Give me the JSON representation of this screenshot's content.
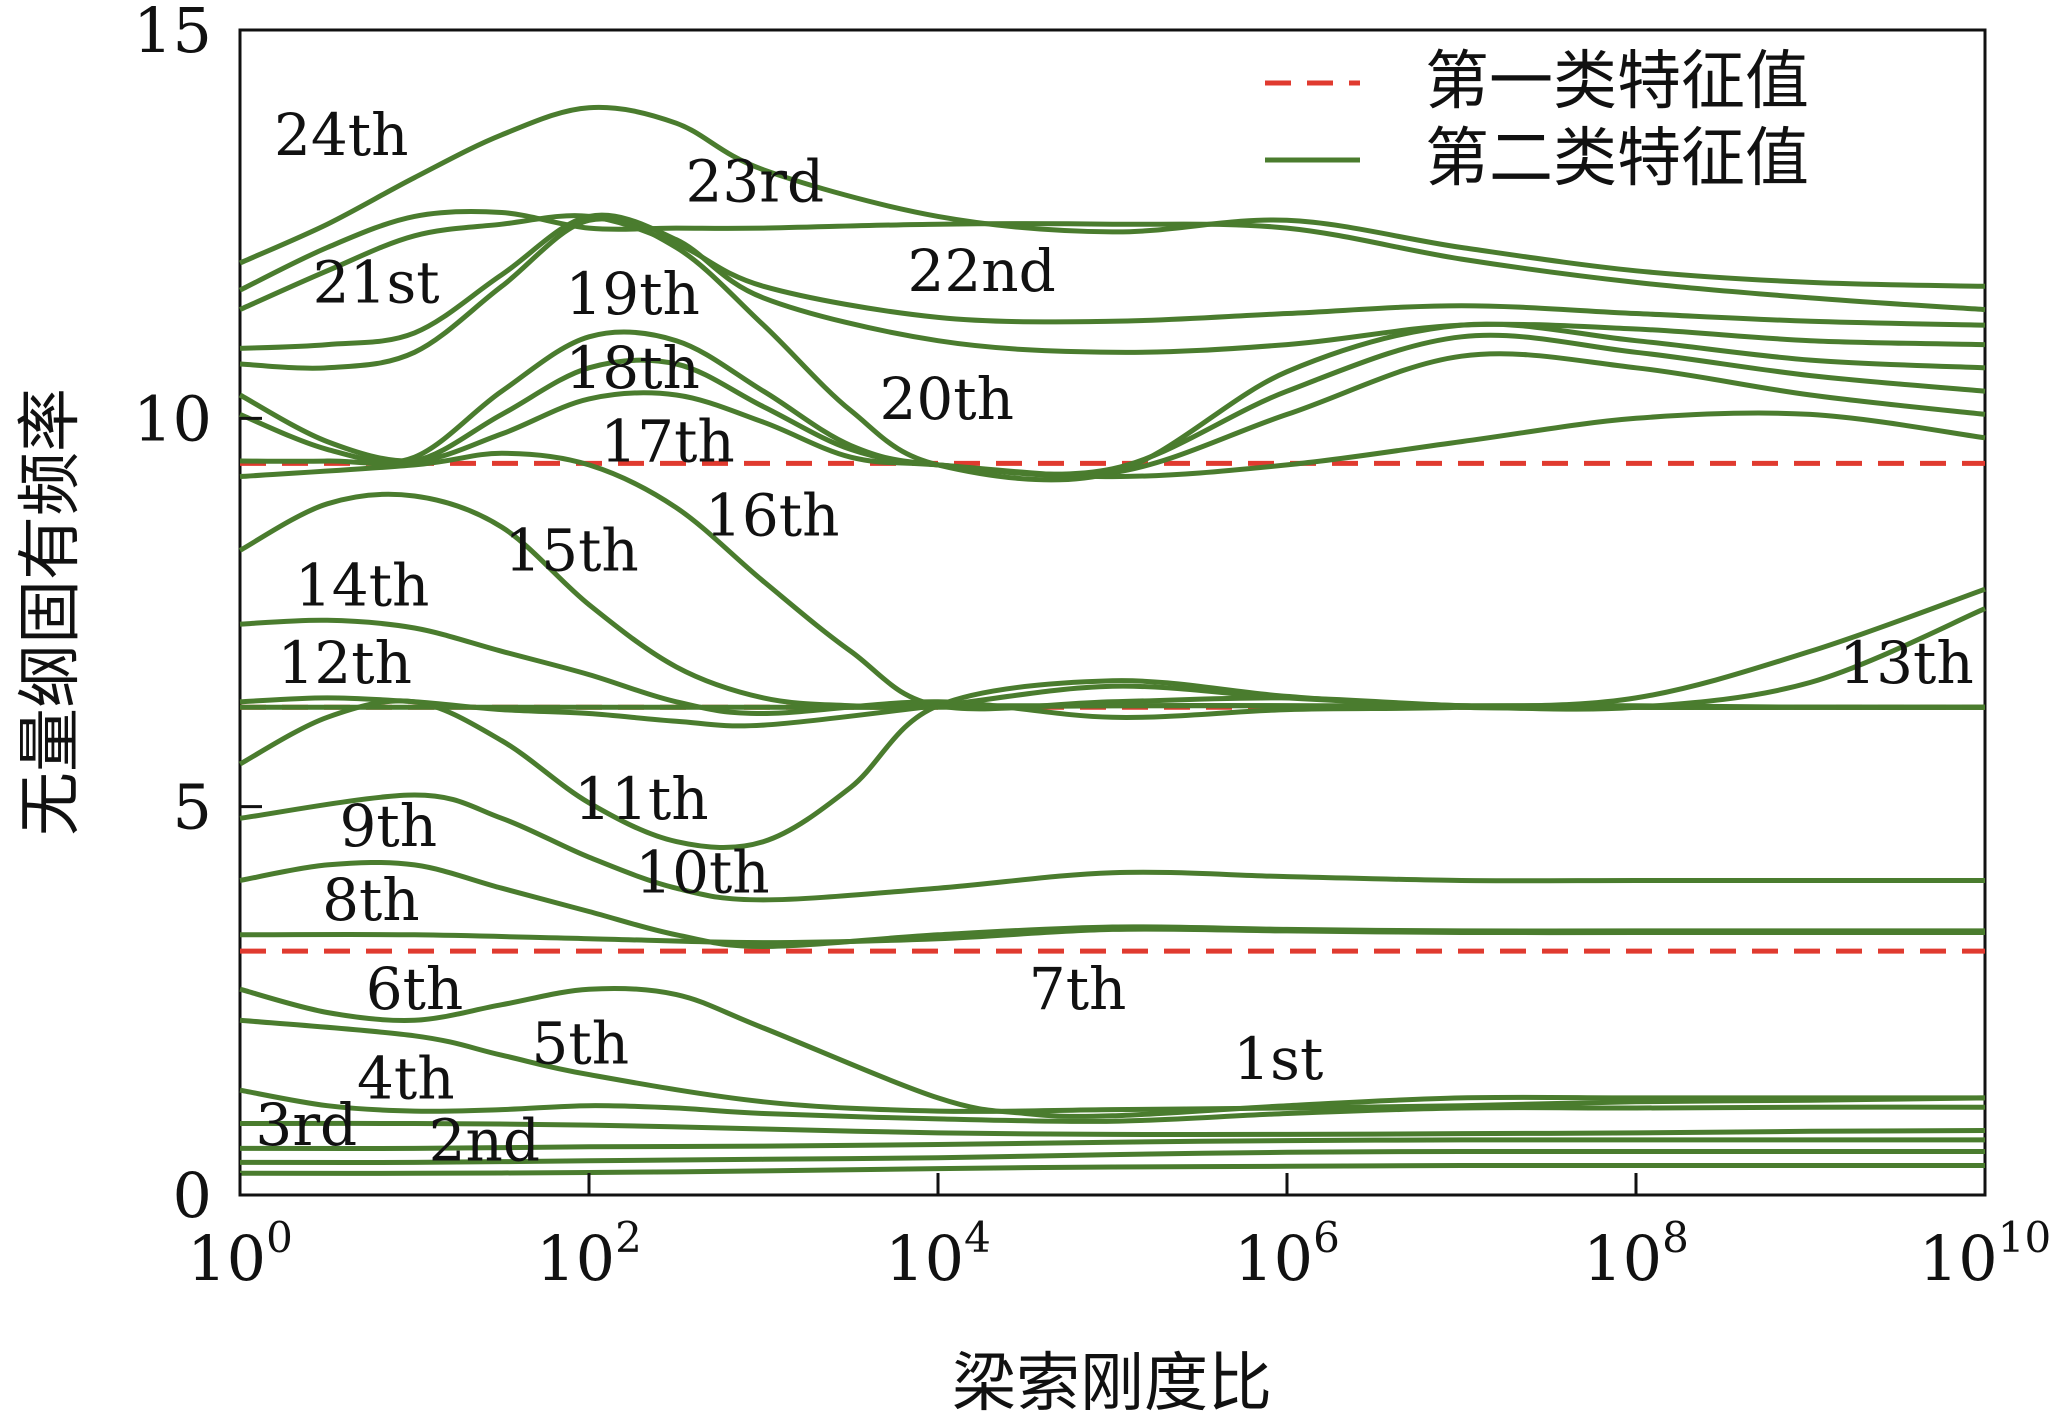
{
  "chart_data": {
    "type": "line",
    "title": "",
    "xlabel": "梁索刚度比",
    "ylabel": "无量纲固有频率",
    "xscale": "log",
    "xlim": [
      1,
      10000000000
    ],
    "ylim": [
      0,
      15
    ],
    "grid": false,
    "legend": {
      "placement": "top-right",
      "entries": [
        {
          "label": "第一类特征值",
          "style": "dashed",
          "color": "#e03a2f"
        },
        {
          "label": "第二类特征值",
          "style": "solid",
          "color": "#4a7c2e"
        }
      ]
    },
    "x_ticks": [
      {
        "value": 1,
        "base": "10",
        "exp": "0"
      },
      {
        "value": 100,
        "base": "10",
        "exp": "2"
      },
      {
        "value": 10000,
        "base": "10",
        "exp": "4"
      },
      {
        "value": 1000000,
        "base": "10",
        "exp": "6"
      },
      {
        "value": 100000000,
        "base": "10",
        "exp": "8"
      },
      {
        "value": 10000000000,
        "base": "10",
        "exp": "10"
      }
    ],
    "y_ticks": [
      {
        "value": 0,
        "label": "0"
      },
      {
        "value": 5,
        "label": "5"
      },
      {
        "value": 10,
        "label": "10"
      },
      {
        "value": 15,
        "label": "15"
      }
    ],
    "first_kind_eigenvalues": [
      3.14,
      6.28,
      9.42
    ],
    "second_kind_eigenvalues": [
      {
        "log10x": [
          0,
          1,
          2,
          3,
          4,
          5,
          6,
          7,
          8,
          9,
          10
        ],
        "y": [
          0.28,
          0.28,
          0.29,
          0.31,
          0.34,
          0.36,
          0.37,
          0.38,
          0.38,
          0.38,
          0.38
        ]
      },
      {
        "log10x": [
          0,
          1,
          2,
          3,
          4,
          5,
          6,
          7,
          8,
          9,
          10
        ],
        "y": [
          0.42,
          0.42,
          0.44,
          0.46,
          0.48,
          0.52,
          0.55,
          0.56,
          0.56,
          0.56,
          0.56
        ]
      },
      {
        "log10x": [
          0,
          1,
          2,
          3,
          4,
          5,
          6,
          7,
          8,
          9,
          10
        ],
        "y": [
          0.6,
          0.6,
          0.62,
          0.63,
          0.65,
          0.68,
          0.7,
          0.71,
          0.71,
          0.71,
          0.71
        ]
      },
      {
        "log10x": [
          0,
          1,
          2,
          3,
          4,
          5,
          6,
          7,
          8,
          9,
          10
        ],
        "y": [
          0.92,
          0.92,
          0.9,
          0.85,
          0.8,
          0.78,
          0.78,
          0.79,
          0.8,
          0.82,
          0.83
        ]
      },
      {
        "log10x": [
          0,
          0.5,
          1,
          1.5,
          2,
          2.5,
          3,
          4,
          5,
          6,
          7,
          8,
          9,
          10
        ],
        "y": [
          1.35,
          1.15,
          1.08,
          1.1,
          1.15,
          1.12,
          1.05,
          0.98,
          0.95,
          1.05,
          1.12,
          1.12,
          1.13,
          1.13
        ]
      },
      {
        "log10x": [
          0,
          1,
          1.5,
          2,
          3,
          4,
          5,
          6,
          7,
          8,
          9,
          10
        ],
        "y": [
          2.25,
          2.05,
          1.8,
          1.55,
          1.2,
          1.08,
          1.1,
          1.12,
          1.15,
          1.2,
          1.22,
          1.25
        ]
      },
      {
        "log10x": [
          0,
          0.5,
          1,
          1.5,
          2,
          2.5,
          3,
          4,
          4.5,
          5,
          6,
          7,
          8,
          9,
          10
        ],
        "y": [
          2.65,
          2.35,
          2.25,
          2.45,
          2.65,
          2.58,
          2.15,
          1.25,
          1.05,
          1.02,
          1.15,
          1.25,
          1.25,
          1.25,
          1.25
        ]
      },
      {
        "log10x": [
          0,
          1,
          2,
          3,
          4,
          5,
          6,
          7,
          8,
          9,
          10
        ],
        "y": [
          3.35,
          3.35,
          3.3,
          3.25,
          3.3,
          3.42,
          3.4,
          3.38,
          3.38,
          3.38,
          3.38
        ]
      },
      {
        "log10x": [
          0,
          0.5,
          1,
          1.5,
          2,
          2.5,
          3,
          4,
          5,
          6,
          7,
          8,
          9,
          10
        ],
        "y": [
          4.05,
          4.25,
          4.25,
          3.95,
          3.65,
          3.35,
          3.2,
          3.35,
          3.45,
          3.42,
          3.4,
          3.4,
          3.4,
          3.4
        ]
      },
      {
        "log10x": [
          0,
          1,
          1.5,
          2,
          2.5,
          3,
          4,
          5,
          6,
          7,
          8,
          9,
          10
        ],
        "y": [
          4.85,
          5.15,
          4.85,
          4.35,
          3.95,
          3.8,
          3.95,
          4.15,
          4.1,
          4.05,
          4.05,
          4.05,
          4.05
        ]
      },
      {
        "log10x": [
          0,
          0.5,
          1,
          1.5,
          2,
          2.5,
          3,
          3.5,
          4,
          5,
          6,
          7,
          8,
          9,
          10
        ],
        "y": [
          5.55,
          6.15,
          6.35,
          5.85,
          5.05,
          4.55,
          4.55,
          5.25,
          6.3,
          6.62,
          6.42,
          6.28,
          6.28,
          6.28,
          6.28
        ]
      },
      {
        "log10x": [
          0,
          0.5,
          1,
          1.5,
          2,
          2.5,
          3,
          4,
          5,
          6,
          7,
          8,
          9,
          10
        ],
        "y": [
          6.35,
          6.4,
          6.35,
          6.25,
          6.2,
          6.1,
          6.05,
          6.3,
          6.55,
          6.4,
          6.3,
          6.28,
          6.28,
          6.28
        ]
      },
      {
        "log10x": [
          0,
          1,
          2,
          3,
          4,
          5,
          6,
          7,
          8,
          9,
          10
        ],
        "y": [
          6.28,
          6.28,
          6.28,
          6.28,
          6.28,
          6.3,
          6.3,
          6.28,
          6.28,
          6.6,
          7.55
        ]
      },
      {
        "log10x": [
          0,
          0.5,
          1,
          1.5,
          2,
          2.5,
          3,
          4,
          5,
          6,
          7,
          8,
          9,
          10
        ],
        "y": [
          7.35,
          7.4,
          7.3,
          7.0,
          6.7,
          6.35,
          6.2,
          6.35,
          6.15,
          6.25,
          6.28,
          6.4,
          7.0,
          7.8
        ]
      },
      {
        "log10x": [
          0,
          0.5,
          1,
          1.5,
          2,
          2.5,
          3,
          3.5,
          4,
          5,
          6,
          7,
          8,
          9,
          10
        ],
        "y": [
          8.3,
          8.9,
          9.0,
          8.6,
          7.6,
          6.8,
          6.4,
          6.3,
          6.3,
          6.3,
          6.3,
          6.3,
          6.3,
          6.28,
          6.28
        ]
      },
      {
        "log10x": [
          0,
          1,
          1.5,
          2,
          2.5,
          3,
          3.5,
          4,
          5,
          6,
          7,
          8,
          9,
          10
        ],
        "y": [
          9.25,
          9.4,
          9.55,
          9.4,
          8.85,
          7.9,
          7.0,
          6.3,
          6.35,
          6.4,
          6.3,
          6.28,
          6.28,
          6.28
        ]
      },
      {
        "log10x": [
          0,
          0.5,
          1,
          1.5,
          2,
          2.5,
          3,
          3.5,
          4,
          5,
          6,
          7,
          8,
          9,
          10
        ],
        "y": [
          10.3,
          9.7,
          9.45,
          9.8,
          10.25,
          10.3,
          9.95,
          9.5,
          9.4,
          9.25,
          9.4,
          9.7,
          10.0,
          10.05,
          9.75
        ]
      },
      {
        "log10x": [
          0,
          0.5,
          1,
          1.5,
          2,
          2.5,
          3,
          3.5,
          4,
          5,
          6,
          7,
          8,
          9,
          10
        ],
        "y": [
          10.05,
          9.6,
          9.45,
          10.05,
          10.65,
          10.7,
          10.15,
          9.6,
          9.4,
          9.3,
          10.05,
          10.8,
          10.65,
          10.3,
          10.05
        ]
      },
      {
        "log10x": [
          0,
          0.5,
          1,
          1.5,
          2,
          2.5,
          3,
          3.5,
          4,
          5,
          6,
          7,
          8,
          9,
          10
        ],
        "y": [
          9.45,
          9.45,
          9.5,
          10.35,
          11.05,
          11.0,
          10.35,
          9.65,
          9.4,
          9.35,
          10.35,
          11.05,
          10.85,
          10.55,
          10.35
        ]
      },
      {
        "log10x": [
          0,
          0.5,
          1,
          1.5,
          2,
          2.5,
          3,
          3.5,
          4,
          5,
          6,
          7,
          8,
          9,
          10
        ],
        "y": [
          10.7,
          10.65,
          10.85,
          11.7,
          12.55,
          12.2,
          11.2,
          10.1,
          9.4,
          9.3,
          10.6,
          11.2,
          11.0,
          10.75,
          10.65
        ]
      },
      {
        "log10x": [
          0,
          0.5,
          1,
          1.5,
          2,
          2.5,
          3,
          4,
          5,
          6,
          7,
          8,
          9,
          10
        ],
        "y": [
          10.9,
          10.95,
          11.1,
          11.85,
          12.6,
          12.3,
          11.55,
          11.0,
          10.85,
          10.95,
          11.2,
          11.15,
          11.0,
          10.95
        ]
      },
      {
        "log10x": [
          0,
          0.5,
          1,
          1.5,
          2,
          2.5,
          3,
          4,
          5,
          6,
          7,
          8,
          9,
          10
        ],
        "y": [
          11.4,
          11.9,
          12.35,
          12.5,
          12.6,
          12.25,
          11.7,
          11.3,
          11.25,
          11.35,
          11.45,
          11.35,
          11.25,
          11.2
        ]
      },
      {
        "log10x": [
          0,
          0.5,
          1,
          1.5,
          2,
          2.5,
          3,
          4,
          5,
          6,
          7,
          8,
          9,
          10
        ],
        "y": [
          11.65,
          12.2,
          12.6,
          12.65,
          12.45,
          12.45,
          12.45,
          12.5,
          12.5,
          12.45,
          12.05,
          11.75,
          11.55,
          11.4
        ]
      },
      {
        "log10x": [
          0,
          0.5,
          1,
          1.5,
          2,
          2.5,
          3,
          4,
          5,
          6,
          7,
          8,
          9,
          10
        ],
        "y": [
          12.0,
          12.5,
          13.1,
          13.65,
          14.0,
          13.8,
          13.2,
          12.6,
          12.4,
          12.55,
          12.2,
          11.9,
          11.75,
          11.7
        ]
      }
    ],
    "annotations": [
      {
        "text": "1st",
        "log10x": 5.95,
        "y": 1.75
      },
      {
        "text": "2nd",
        "log10x": 1.4,
        "y": 0.7
      },
      {
        "text": "3rd",
        "log10x": 0.38,
        "y": 0.9
      },
      {
        "text": "4th",
        "log10x": 0.95,
        "y": 1.5
      },
      {
        "text": "5th",
        "log10x": 1.95,
        "y": 1.95
      },
      {
        "text": "6th",
        "log10x": 1.0,
        "y": 2.65
      },
      {
        "text": "7th",
        "log10x": 4.8,
        "y": 2.65
      },
      {
        "text": "8th",
        "log10x": 0.75,
        "y": 3.8
      },
      {
        "text": "9th",
        "log10x": 0.85,
        "y": 4.75
      },
      {
        "text": "10th",
        "log10x": 2.65,
        "y": 4.15
      },
      {
        "text": "11th",
        "log10x": 2.3,
        "y": 5.1
      },
      {
        "text": "12th",
        "log10x": 0.6,
        "y": 6.85
      },
      {
        "text": "13th",
        "log10x": 9.55,
        "y": 6.85
      },
      {
        "text": "14th",
        "log10x": 0.7,
        "y": 7.85
      },
      {
        "text": "15th",
        "log10x": 1.9,
        "y": 8.3
      },
      {
        "text": "16th",
        "log10x": 3.05,
        "y": 8.75
      },
      {
        "text": "17th",
        "log10x": 2.45,
        "y": 9.7
      },
      {
        "text": "18th",
        "log10x": 2.25,
        "y": 10.65
      },
      {
        "text": "19th",
        "log10x": 2.25,
        "y": 11.6
      },
      {
        "text": "20th",
        "log10x": 4.05,
        "y": 10.25
      },
      {
        "text": "21st",
        "log10x": 0.78,
        "y": 11.75
      },
      {
        "text": "22nd",
        "log10x": 4.25,
        "y": 11.9
      },
      {
        "text": "23rd",
        "log10x": 2.95,
        "y": 13.05
      },
      {
        "text": "24th",
        "log10x": 0.58,
        "y": 13.65
      }
    ],
    "colors": {
      "first_kind": "#e03a2f",
      "second_kind": "#4a7c2e",
      "axes": "#111111"
    }
  }
}
